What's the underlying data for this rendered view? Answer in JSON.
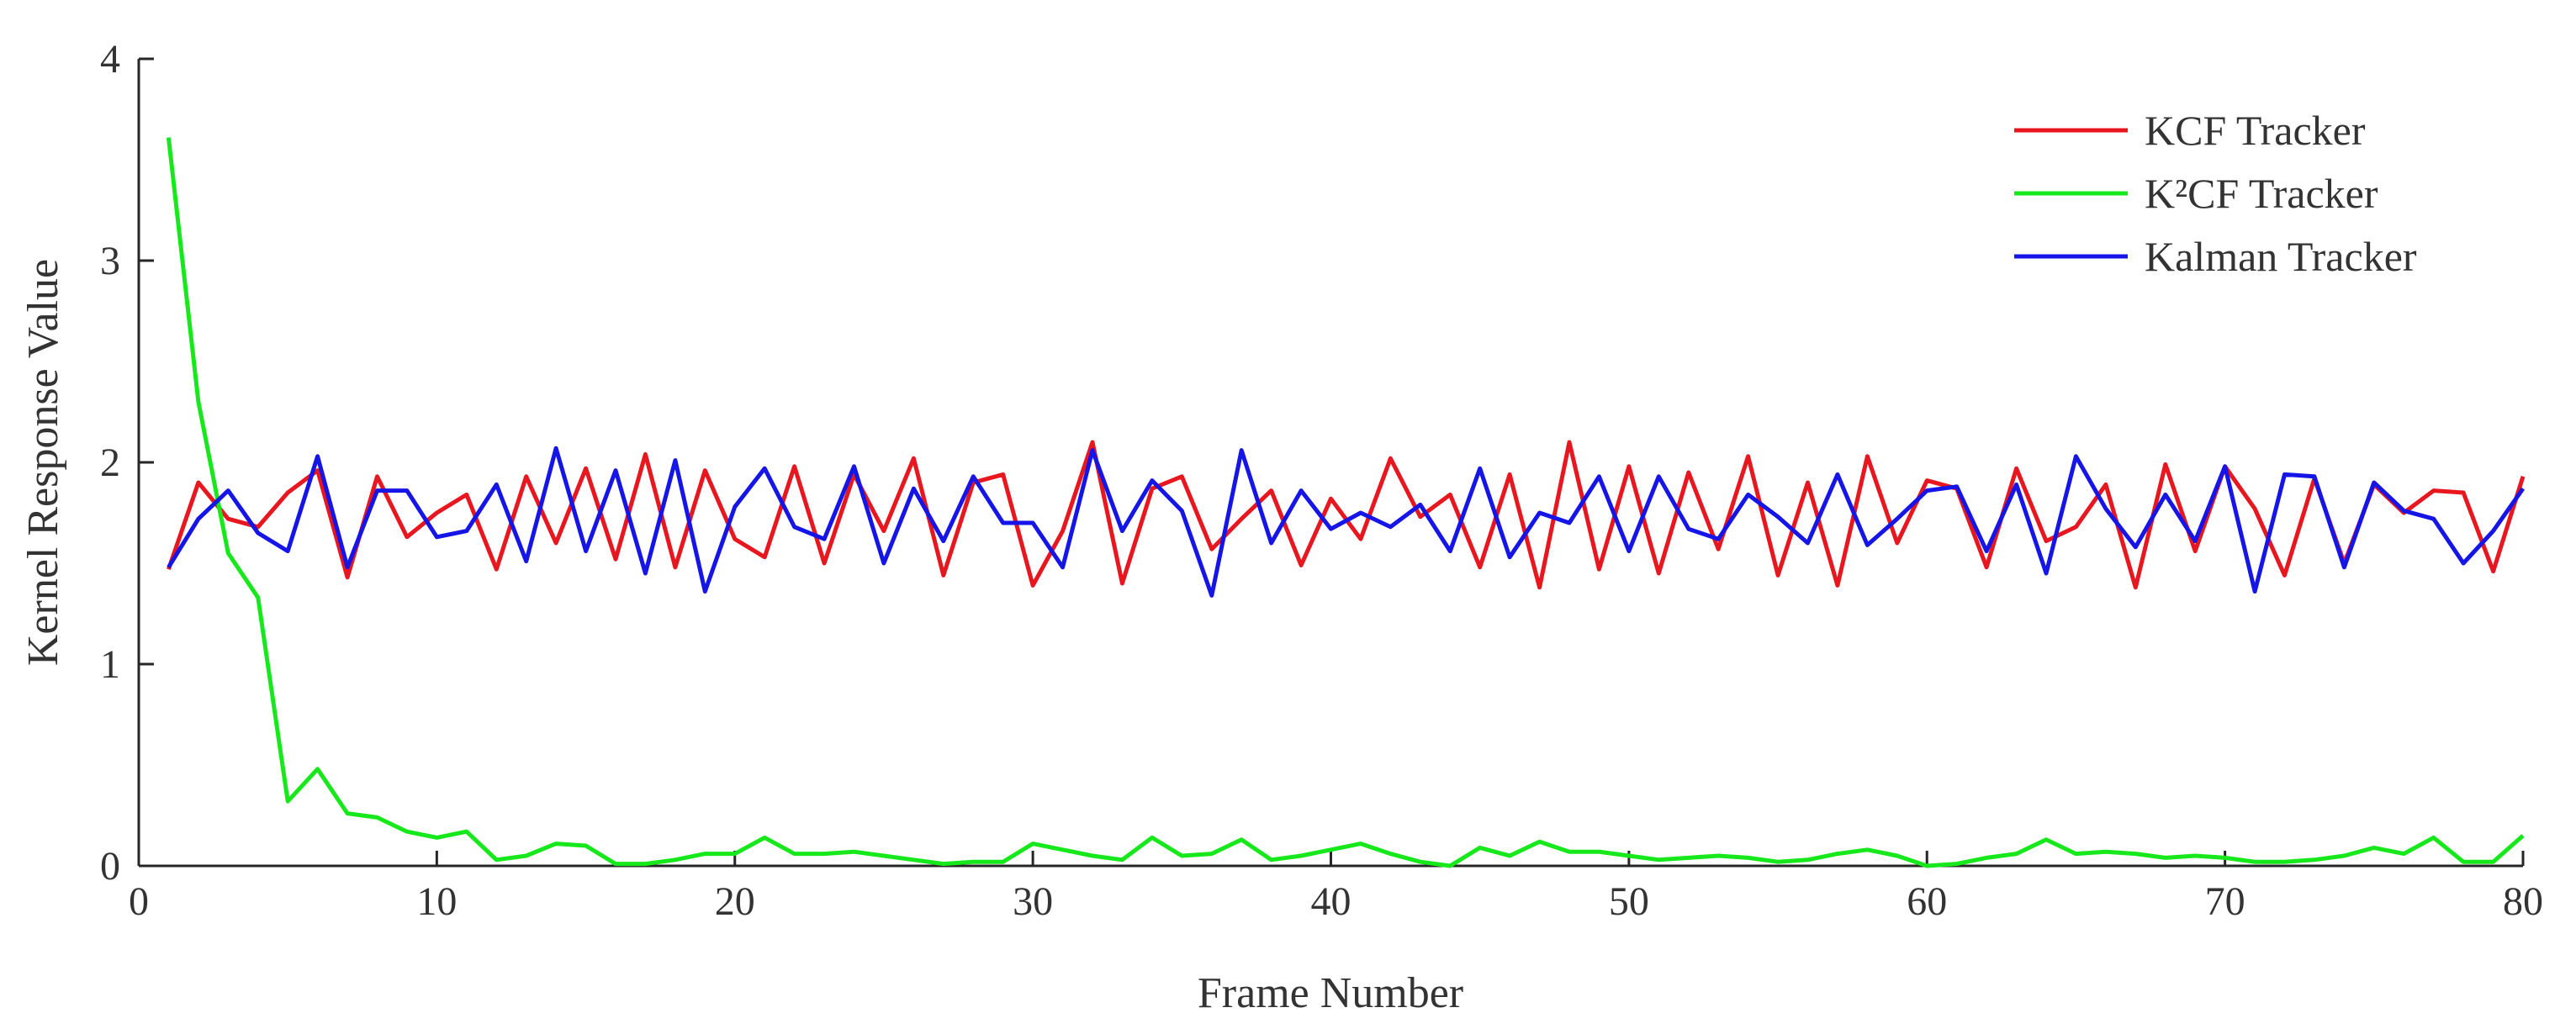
{
  "chart_data": {
    "type": "line",
    "xlabel": "Frame Number",
    "ylabel": "Kernel Response Value",
    "xlim": [
      0,
      80
    ],
    "ylim": [
      0,
      4
    ],
    "xticks": [
      0,
      10,
      20,
      30,
      40,
      50,
      60,
      70,
      80
    ],
    "yticks": [
      0,
      1,
      2,
      3,
      4
    ],
    "grid": false,
    "legend_position": "top-right",
    "x": [
      1,
      2,
      3,
      4,
      5,
      6,
      7,
      8,
      9,
      10,
      11,
      12,
      13,
      14,
      15,
      16,
      17,
      18,
      19,
      20,
      21,
      22,
      23,
      24,
      25,
      26,
      27,
      28,
      29,
      30,
      31,
      32,
      33,
      34,
      35,
      36,
      37,
      38,
      39,
      40,
      41,
      42,
      43,
      44,
      45,
      46,
      47,
      48,
      49,
      50,
      51,
      52,
      53,
      54,
      55,
      56,
      57,
      58,
      59,
      60,
      61,
      62,
      63,
      64,
      65,
      66,
      67,
      68,
      69,
      70,
      71,
      72,
      73,
      74,
      75,
      76,
      77,
      78,
      79,
      80
    ],
    "series": [
      {
        "name": "KCF Tracker",
        "color": "#e8161e",
        "values": [
          1.47,
          1.9,
          1.72,
          1.68,
          1.85,
          1.96,
          1.43,
          1.93,
          1.63,
          1.75,
          1.84,
          1.47,
          1.93,
          1.6,
          1.97,
          1.52,
          2.04,
          1.48,
          1.96,
          1.62,
          1.53,
          1.98,
          1.5,
          1.94,
          1.66,
          2.02,
          1.44,
          1.9,
          1.94,
          1.39,
          1.66,
          2.1,
          1.4,
          1.87,
          1.93,
          1.57,
          1.72,
          1.86,
          1.49,
          1.82,
          1.62,
          2.02,
          1.73,
          1.84,
          1.48,
          1.94,
          1.38,
          2.1,
          1.47,
          1.98,
          1.45,
          1.95,
          1.57,
          2.03,
          1.44,
          1.9,
          1.39,
          2.03,
          1.6,
          1.91,
          1.87,
          1.48,
          1.97,
          1.61,
          1.68,
          1.89,
          1.38,
          1.99,
          1.56,
          1.98,
          1.77,
          1.44,
          1.92,
          1.5,
          1.89,
          1.75,
          1.86,
          1.85,
          1.46,
          1.93
        ]
      },
      {
        "name": "K²CF  Tracker",
        "color": "#17e81b",
        "values": [
          3.61,
          2.3,
          1.55,
          1.33,
          0.32,
          0.48,
          0.26,
          0.24,
          0.17,
          0.14,
          0.17,
          0.03,
          0.05,
          0.11,
          0.1,
          0.01,
          0.01,
          0.03,
          0.06,
          0.06,
          0.14,
          0.06,
          0.06,
          0.07,
          0.05,
          0.03,
          0.01,
          0.02,
          0.02,
          0.11,
          0.08,
          0.05,
          0.03,
          0.14,
          0.05,
          0.06,
          0.13,
          0.03,
          0.05,
          0.08,
          0.11,
          0.06,
          0.02,
          0.0,
          0.09,
          0.05,
          0.12,
          0.07,
          0.07,
          0.05,
          0.03,
          0.04,
          0.05,
          0.04,
          0.02,
          0.03,
          0.06,
          0.08,
          0.05,
          0.0,
          0.01,
          0.04,
          0.06,
          0.13,
          0.06,
          0.07,
          0.06,
          0.04,
          0.05,
          0.04,
          0.02,
          0.02,
          0.03,
          0.05,
          0.09,
          0.06,
          0.14,
          0.02,
          0.02,
          0.15
        ]
      },
      {
        "name": "Kalman Tracker",
        "color": "#1515e8",
        "values": [
          1.48,
          1.72,
          1.86,
          1.65,
          1.56,
          2.03,
          1.48,
          1.86,
          1.86,
          1.63,
          1.66,
          1.89,
          1.51,
          2.07,
          1.56,
          1.96,
          1.45,
          2.01,
          1.36,
          1.78,
          1.97,
          1.68,
          1.62,
          1.98,
          1.5,
          1.87,
          1.61,
          1.93,
          1.7,
          1.7,
          1.48,
          2.06,
          1.66,
          1.91,
          1.76,
          1.34,
          2.06,
          1.6,
          1.86,
          1.67,
          1.75,
          1.68,
          1.79,
          1.56,
          1.97,
          1.53,
          1.75,
          1.7,
          1.93,
          1.56,
          1.93,
          1.67,
          1.62,
          1.84,
          1.73,
          1.6,
          1.94,
          1.59,
          1.72,
          1.86,
          1.88,
          1.56,
          1.89,
          1.45,
          2.03,
          1.77,
          1.58,
          1.84,
          1.61,
          1.98,
          1.36,
          1.94,
          1.93,
          1.48,
          1.9,
          1.76,
          1.72,
          1.5,
          1.66,
          1.87
        ]
      }
    ]
  }
}
